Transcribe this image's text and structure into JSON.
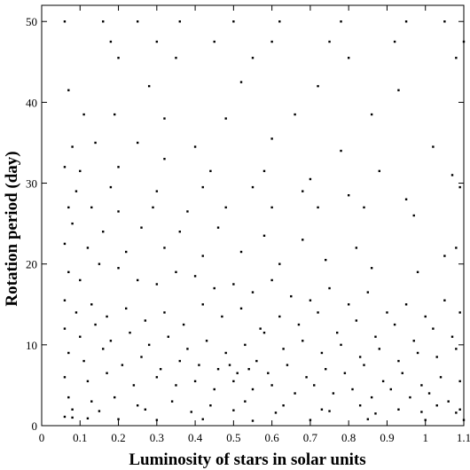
{
  "chart_data": {
    "type": "scatter",
    "title": "",
    "xlabel": "Luminosity of stars in solar units",
    "ylabel": "Rotation period (day)",
    "xlim": [
      0,
      1.1
    ],
    "ylim": [
      0,
      52
    ],
    "x_ticks": [
      "0",
      "0.1",
      "0.2",
      "0.3",
      "0.4",
      "0.5",
      "0.6",
      "0.7",
      "0.8",
      "0.9",
      "1",
      "1.1"
    ],
    "y_ticks": [
      "0",
      "10",
      "20",
      "30",
      "40",
      "50"
    ],
    "grid": false,
    "legend": "none",
    "marker_color": "#000000",
    "series": [
      {
        "points": [
          [
            0.06,
            1.1
          ],
          [
            0.08,
            1.0
          ],
          [
            0.12,
            0.9
          ],
          [
            0.2,
            0.8
          ],
          [
            0.3,
            0.7
          ],
          [
            0.42,
            0.8
          ],
          [
            0.55,
            0.6
          ],
          [
            0.7,
            0.7
          ],
          [
            0.85,
            0.8
          ],
          [
            1.0,
            0.7
          ],
          [
            1.1,
            0.7
          ],
          [
            0.06,
            50
          ],
          [
            0.16,
            50
          ],
          [
            0.25,
            50
          ],
          [
            0.36,
            50
          ],
          [
            0.5,
            50
          ],
          [
            0.62,
            50
          ],
          [
            0.78,
            50
          ],
          [
            0.95,
            50
          ],
          [
            1.05,
            50
          ],
          [
            0.18,
            47.5
          ],
          [
            0.3,
            47.5
          ],
          [
            0.45,
            47.5
          ],
          [
            0.6,
            47.5
          ],
          [
            0.75,
            47.5
          ],
          [
            0.92,
            47.5
          ],
          [
            1.1,
            47.5
          ],
          [
            0.2,
            45.5
          ],
          [
            0.35,
            45.5
          ],
          [
            0.55,
            45.5
          ],
          [
            0.8,
            45.5
          ],
          [
            1.08,
            45.5
          ],
          [
            0.07,
            41.5
          ],
          [
            0.28,
            42
          ],
          [
            0.52,
            42.5
          ],
          [
            0.72,
            42
          ],
          [
            0.93,
            41.5
          ],
          [
            0.11,
            38.5
          ],
          [
            0.19,
            38.5
          ],
          [
            0.32,
            38
          ],
          [
            0.48,
            38
          ],
          [
            0.66,
            38.5
          ],
          [
            0.86,
            38.5
          ],
          [
            0.08,
            34.5
          ],
          [
            0.14,
            35
          ],
          [
            0.25,
            35
          ],
          [
            0.4,
            34.5
          ],
          [
            0.6,
            35.5
          ],
          [
            0.78,
            34
          ],
          [
            1.02,
            34.5
          ],
          [
            0.06,
            32
          ],
          [
            0.1,
            31.5
          ],
          [
            0.2,
            32
          ],
          [
            0.32,
            33
          ],
          [
            0.44,
            31.5
          ],
          [
            0.58,
            31.5
          ],
          [
            0.7,
            30.5
          ],
          [
            0.88,
            31.5
          ],
          [
            1.07,
            31
          ],
          [
            0.09,
            29
          ],
          [
            0.18,
            29.5
          ],
          [
            0.3,
            29
          ],
          [
            0.42,
            29.5
          ],
          [
            0.55,
            29.5
          ],
          [
            0.68,
            29
          ],
          [
            0.8,
            28.5
          ],
          [
            0.95,
            28
          ],
          [
            1.09,
            29.5
          ],
          [
            0.07,
            27
          ],
          [
            0.13,
            27
          ],
          [
            0.2,
            26.5
          ],
          [
            0.29,
            27
          ],
          [
            0.38,
            26.5
          ],
          [
            0.48,
            27
          ],
          [
            0.6,
            27
          ],
          [
            0.72,
            27
          ],
          [
            0.84,
            27
          ],
          [
            0.97,
            26
          ],
          [
            0.08,
            25
          ],
          [
            0.16,
            24
          ],
          [
            0.26,
            24.5
          ],
          [
            0.36,
            24
          ],
          [
            0.46,
            24.5
          ],
          [
            0.58,
            23.5
          ],
          [
            0.68,
            23
          ],
          [
            0.82,
            22
          ],
          [
            1.08,
            22
          ],
          [
            0.06,
            22.5
          ],
          [
            0.12,
            22
          ],
          [
            0.22,
            21.5
          ],
          [
            0.32,
            22
          ],
          [
            0.42,
            21
          ],
          [
            0.52,
            21.5
          ],
          [
            0.62,
            20
          ],
          [
            0.74,
            20.5
          ],
          [
            0.86,
            19.5
          ],
          [
            0.98,
            19
          ],
          [
            1.05,
            21
          ],
          [
            0.07,
            19
          ],
          [
            0.1,
            18
          ],
          [
            0.15,
            20
          ],
          [
            0.2,
            19.5
          ],
          [
            0.25,
            18
          ],
          [
            0.3,
            17.5
          ],
          [
            0.35,
            19
          ],
          [
            0.4,
            18.5
          ],
          [
            0.45,
            17
          ],
          [
            0.5,
            17.5
          ],
          [
            0.55,
            16.5
          ],
          [
            0.6,
            18
          ],
          [
            0.65,
            16
          ],
          [
            0.7,
            15.5
          ],
          [
            0.75,
            17
          ],
          [
            0.8,
            15
          ],
          [
            0.85,
            16.5
          ],
          [
            0.9,
            14
          ],
          [
            0.95,
            15
          ],
          [
            1.0,
            13.5
          ],
          [
            1.05,
            15.5
          ],
          [
            1.09,
            14
          ],
          [
            0.06,
            15.5
          ],
          [
            0.09,
            14
          ],
          [
            0.13,
            15
          ],
          [
            0.17,
            13.5
          ],
          [
            0.22,
            14.5
          ],
          [
            0.27,
            13
          ],
          [
            0.32,
            14
          ],
          [
            0.37,
            12.5
          ],
          [
            0.42,
            15
          ],
          [
            0.47,
            13.5
          ],
          [
            0.52,
            14.5
          ],
          [
            0.57,
            12
          ],
          [
            0.62,
            13.5
          ],
          [
            0.67,
            12.5
          ],
          [
            0.72,
            14
          ],
          [
            0.77,
            11.5
          ],
          [
            0.82,
            13
          ],
          [
            0.87,
            11
          ],
          [
            0.92,
            12.5
          ],
          [
            0.97,
            10.5
          ],
          [
            1.02,
            12
          ],
          [
            1.07,
            11
          ],
          [
            0.06,
            12
          ],
          [
            0.1,
            11
          ],
          [
            0.14,
            12.5
          ],
          [
            0.18,
            10.5
          ],
          [
            0.23,
            11.5
          ],
          [
            0.28,
            10
          ],
          [
            0.33,
            11
          ],
          [
            0.38,
            9.5
          ],
          [
            0.43,
            10.5
          ],
          [
            0.48,
            9
          ],
          [
            0.53,
            10
          ],
          [
            0.58,
            11.5
          ],
          [
            0.63,
            9.5
          ],
          [
            0.68,
            10.5
          ],
          [
            0.73,
            9
          ],
          [
            0.78,
            10
          ],
          [
            0.83,
            8.5
          ],
          [
            0.88,
            9.5
          ],
          [
            0.93,
            8
          ],
          [
            0.98,
            9
          ],
          [
            1.03,
            8.5
          ],
          [
            1.08,
            9.5
          ],
          [
            0.07,
            9
          ],
          [
            0.11,
            8
          ],
          [
            0.16,
            9.5
          ],
          [
            0.21,
            7.5
          ],
          [
            0.26,
            8.5
          ],
          [
            0.31,
            7
          ],
          [
            0.36,
            8
          ],
          [
            0.41,
            7.5
          ],
          [
            0.46,
            7
          ],
          [
            0.49,
            7.5
          ],
          [
            0.51,
            6.5
          ],
          [
            0.54,
            7
          ],
          [
            0.56,
            8
          ],
          [
            0.59,
            6.5
          ],
          [
            0.64,
            7.5
          ],
          [
            0.69,
            6
          ],
          [
            0.74,
            7
          ],
          [
            0.79,
            6.5
          ],
          [
            0.84,
            7.5
          ],
          [
            0.89,
            5.5
          ],
          [
            0.94,
            6.5
          ],
          [
            0.99,
            5
          ],
          [
            1.04,
            6
          ],
          [
            1.09,
            5.5
          ],
          [
            0.06,
            6
          ],
          [
            0.12,
            5.5
          ],
          [
            0.17,
            6.5
          ],
          [
            0.24,
            5
          ],
          [
            0.3,
            6
          ],
          [
            0.35,
            5
          ],
          [
            0.4,
            5.5
          ],
          [
            0.45,
            4.5
          ],
          [
            0.5,
            5.5
          ],
          [
            0.55,
            4.5
          ],
          [
            0.6,
            5
          ],
          [
            0.66,
            4
          ],
          [
            0.71,
            5
          ],
          [
            0.76,
            4
          ],
          [
            0.81,
            4.5
          ],
          [
            0.86,
            3.5
          ],
          [
            0.91,
            4.5
          ],
          [
            0.96,
            3.5
          ],
          [
            1.01,
            4
          ],
          [
            1.06,
            3
          ],
          [
            0.07,
            3.5
          ],
          [
            0.13,
            3
          ],
          [
            0.19,
            3.5
          ],
          [
            0.25,
            2.5
          ],
          [
            0.34,
            3
          ],
          [
            0.44,
            2.5
          ],
          [
            0.53,
            3
          ],
          [
            0.63,
            2.5
          ],
          [
            0.73,
            2
          ],
          [
            0.83,
            2.5
          ],
          [
            0.93,
            2
          ],
          [
            1.03,
            2.5
          ],
          [
            1.09,
            2
          ],
          [
            0.08,
            2
          ],
          [
            0.15,
            1.8
          ],
          [
            0.27,
            2
          ],
          [
            0.39,
            1.7
          ],
          [
            0.5,
            1.9
          ],
          [
            0.61,
            1.6
          ],
          [
            0.75,
            1.8
          ],
          [
            0.87,
            1.5
          ],
          [
            0.99,
            1.7
          ],
          [
            1.08,
            1.6
          ]
        ]
      }
    ]
  }
}
